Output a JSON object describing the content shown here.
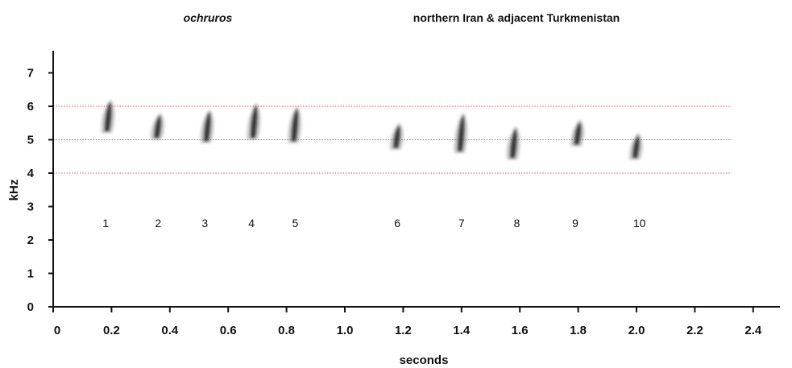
{
  "chart_data": {
    "type": "scatter",
    "subtitle_taxon": "ochruros",
    "title": "northern Iran & adjacent Turkmenistan",
    "xlabel": "seconds",
    "ylabel": "kHz",
    "xlim": [
      0,
      2.5
    ],
    "ylim": [
      0,
      7.5
    ],
    "x_ticks": [
      "0",
      "0.2",
      "0.4",
      "0.6",
      "0.8",
      "1.0",
      "1.2",
      "1.4",
      "1.6",
      "1.8",
      "2.0",
      "2.2",
      "2.4"
    ],
    "y_ticks": [
      "0",
      "1",
      "2",
      "3",
      "4",
      "5",
      "6",
      "7"
    ],
    "reference_lines_khz": [
      6,
      5,
      4
    ],
    "reference_line_color": "#d9534f",
    "mark_color": "#222222",
    "notes": [
      {
        "label": "1",
        "x": 0.19,
        "low_khz": 5.2,
        "high_khz": 6.2,
        "label_x": 0.18
      },
      {
        "label": "2",
        "x": 0.36,
        "low_khz": 5.0,
        "high_khz": 5.8,
        "label_x": 0.36
      },
      {
        "label": "3",
        "x": 0.53,
        "low_khz": 4.9,
        "high_khz": 5.9,
        "label_x": 0.52
      },
      {
        "label": "4",
        "x": 0.69,
        "low_khz": 5.0,
        "high_khz": 6.1,
        "label_x": 0.68
      },
      {
        "label": "5",
        "x": 0.83,
        "low_khz": 4.9,
        "high_khz": 6.0,
        "label_x": 0.83
      },
      {
        "label": "6",
        "x": 1.18,
        "low_khz": 4.7,
        "high_khz": 5.5,
        "label_x": 1.18
      },
      {
        "label": "7",
        "x": 1.4,
        "low_khz": 4.6,
        "high_khz": 5.8,
        "label_x": 1.4
      },
      {
        "label": "8",
        "x": 1.58,
        "low_khz": 4.4,
        "high_khz": 5.4,
        "label_x": 1.59
      },
      {
        "label": "9",
        "x": 1.8,
        "low_khz": 4.8,
        "high_khz": 5.6,
        "label_x": 1.79
      },
      {
        "label": "10",
        "x": 2.0,
        "low_khz": 4.4,
        "high_khz": 5.2,
        "label_x": 2.01
      }
    ]
  }
}
